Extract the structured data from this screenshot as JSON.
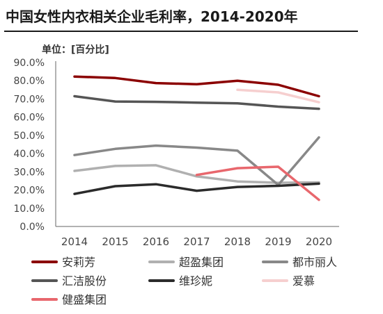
{
  "title": "中国女性内衣相关企业毛利率，2014-2020年",
  "unit_label": "单位：[百分比]",
  "chart_data": {
    "type": "line",
    "title": "中国女性内衣相关企业毛利率，2014-2020年",
    "ylabel": "单位：[百分比]",
    "xlabel": "",
    "x": [
      "2014",
      "2015",
      "2016",
      "2017",
      "2018",
      "2019",
      "2020"
    ],
    "ylim": [
      0,
      90
    ],
    "yticks": [
      "0.0%",
      "10.0%",
      "20.0%",
      "30.0%",
      "40.0%",
      "50.0%",
      "60.0%",
      "70.0%",
      "80.0%",
      "90.0%"
    ],
    "grid": false,
    "legend_position": "bottom",
    "series": [
      {
        "name": "安莉芳",
        "color": "#8b0000",
        "values": [
          82.3,
          81.5,
          78.7,
          78.1,
          80.0,
          77.8,
          71.5
        ]
      },
      {
        "name": "超盈集团",
        "color": "#b0b0b0",
        "values": [
          30.5,
          33.2,
          33.6,
          27.5,
          24.7,
          24.0,
          24.2
        ]
      },
      {
        "name": "都市丽人",
        "color": "#888888",
        "values": [
          39.2,
          42.6,
          44.4,
          43.3,
          41.6,
          22.8,
          48.9
        ]
      },
      {
        "name": "汇洁股份",
        "color": "#555555",
        "values": [
          71.5,
          68.6,
          68.4,
          68.0,
          67.6,
          65.8,
          64.6
        ]
      },
      {
        "name": "维珍妮",
        "color": "#2b2b2b",
        "values": [
          17.9,
          22.1,
          23.2,
          19.6,
          21.7,
          22.3,
          23.5
        ]
      },
      {
        "name": "爱慕",
        "color": "#f6cfcf",
        "values": [
          null,
          null,
          null,
          null,
          75.0,
          73.6,
          68.2
        ]
      },
      {
        "name": "健盛集团",
        "color": "#e8676d",
        "values": [
          null,
          null,
          null,
          28.3,
          32.0,
          32.8,
          14.6
        ]
      }
    ]
  }
}
